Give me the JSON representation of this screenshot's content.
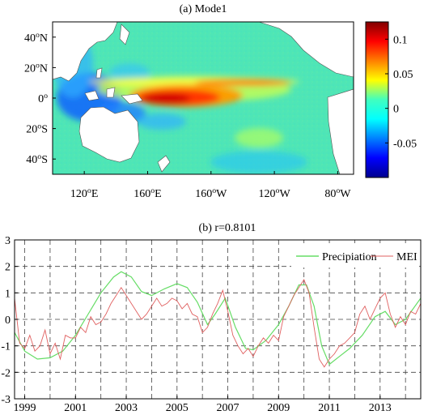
{
  "map_panel": {
    "title": "(a) Mode1",
    "lat_labels": [
      {
        "deg": "40",
        "hemi": "N",
        "lat": 40
      },
      {
        "deg": "20",
        "hemi": "N",
        "lat": 20
      },
      {
        "deg": "0",
        "hemi": "",
        "lat": 0
      },
      {
        "deg": "20",
        "hemi": "S",
        "lat": -20
      },
      {
        "deg": "40",
        "hemi": "S",
        "lat": -40
      }
    ],
    "lon_labels": [
      {
        "deg": "120",
        "hemi": "E",
        "lon": 120
      },
      {
        "deg": "160",
        "hemi": "E",
        "lon": 160
      },
      {
        "deg": "160",
        "hemi": "W",
        "lon": 200
      },
      {
        "deg": "120",
        "hemi": "W",
        "lon": 240
      },
      {
        "deg": "80",
        "hemi": "W",
        "lon": 280
      }
    ],
    "lon_range": [
      100,
      290
    ],
    "lat_range": [
      -50,
      50
    ],
    "colorbar": {
      "range": [
        -0.1,
        0.125
      ],
      "ticks": [
        {
          "value": 0.1,
          "label": "0.1"
        },
        {
          "value": 0.05,
          "label": "0.05"
        },
        {
          "value": 0,
          "label": "0"
        },
        {
          "value": -0.05,
          "label": "-0.05"
        }
      ],
      "colormap": "jet"
    }
  },
  "chart_data": {
    "type": "line",
    "title": "(b) r=0.8101",
    "xlim": [
      1998.6,
      2014.6
    ],
    "ylim": [
      -3,
      3
    ],
    "x_tick_labels": [
      "1999",
      "2001",
      "2003",
      "2005",
      "2007",
      "2009",
      "2011",
      "2013"
    ],
    "y_tick_labels": [
      "3",
      "2",
      "1",
      "0",
      "-1",
      "-2",
      "-3"
    ],
    "grid": true,
    "legend_position": "top-right",
    "series": [
      {
        "name": "Precipiation",
        "color": "#66dd66",
        "x": [
          1998.6,
          1999.0,
          1999.5,
          2000.0,
          2000.5,
          2001.0,
          2001.5,
          2002.0,
          2002.5,
          2002.8,
          2003.2,
          2003.6,
          2004.0,
          2004.5,
          2005.0,
          2005.4,
          2005.8,
          2006.2,
          2006.5,
          2006.9,
          2007.3,
          2007.7,
          2008.0,
          2008.5,
          2009.0,
          2009.4,
          2009.8,
          2010.1,
          2010.4,
          2010.7,
          2011.0,
          2011.4,
          2011.8,
          2012.3,
          2012.8,
          2013.2,
          2013.6,
          2014.0,
          2014.6
        ],
        "y": [
          -0.5,
          -1.2,
          -1.5,
          -1.45,
          -1.2,
          -0.6,
          0.2,
          1.0,
          1.6,
          1.8,
          1.6,
          1.05,
          0.9,
          1.15,
          1.35,
          1.2,
          0.65,
          -0.2,
          0.2,
          0.8,
          -0.3,
          -1.1,
          -1.15,
          -0.8,
          -0.2,
          0.5,
          1.3,
          1.3,
          0.5,
          -1.0,
          -1.7,
          -1.4,
          -1.1,
          -0.6,
          0.1,
          0.3,
          -0.2,
          0.0,
          0.8
        ]
      },
      {
        "name": "MEI",
        "color": "#e06060",
        "x": [
          1998.6,
          1998.8,
          1999.0,
          1999.2,
          1999.4,
          1999.6,
          1999.8,
          2000.0,
          2000.2,
          2000.4,
          2000.6,
          2000.8,
          2001.0,
          2001.2,
          2001.4,
          2001.6,
          2001.8,
          2002.0,
          2002.2,
          2002.4,
          2002.6,
          2002.8,
          2003.0,
          2003.2,
          2003.4,
          2003.6,
          2003.8,
          2004.0,
          2004.2,
          2004.4,
          2004.6,
          2004.8,
          2005.0,
          2005.2,
          2005.4,
          2005.6,
          2005.8,
          2006.0,
          2006.2,
          2006.4,
          2006.6,
          2006.8,
          2007.0,
          2007.2,
          2007.4,
          2007.6,
          2007.8,
          2008.0,
          2008.2,
          2008.4,
          2008.6,
          2008.8,
          2009.0,
          2009.2,
          2009.4,
          2009.6,
          2009.8,
          2010.0,
          2010.2,
          2010.4,
          2010.6,
          2010.8,
          2011.0,
          2011.2,
          2011.4,
          2011.6,
          2011.8,
          2012.0,
          2012.2,
          2012.4,
          2012.6,
          2012.8,
          2013.0,
          2013.2,
          2013.4,
          2013.6,
          2013.8,
          2014.0,
          2014.2,
          2014.4,
          2014.6
        ],
        "y": [
          0.8,
          -0.9,
          -1.1,
          -0.6,
          -1.2,
          -1.0,
          -0.4,
          -1.3,
          -0.9,
          -1.5,
          -0.6,
          -0.7,
          -0.7,
          -0.3,
          -0.5,
          0.1,
          -0.2,
          -0.1,
          0.2,
          0.6,
          0.9,
          1.2,
          0.9,
          0.6,
          0.3,
          0.0,
          0.2,
          0.5,
          0.8,
          0.5,
          0.6,
          0.8,
          0.7,
          0.4,
          0.6,
          0.2,
          0.1,
          -0.5,
          -0.3,
          0.2,
          0.6,
          1.1,
          0.3,
          -0.6,
          -1.0,
          -1.3,
          -1.1,
          -1.4,
          -1.0,
          -0.7,
          -0.9,
          -0.6,
          -0.8,
          0.1,
          0.5,
          0.9,
          1.2,
          1.5,
          1.0,
          -0.3,
          -1.5,
          -1.8,
          -1.5,
          -1.3,
          -1.0,
          -0.9,
          -0.7,
          -0.5,
          0.2,
          0.5,
          0.0,
          0.4,
          0.8,
          1.0,
          0.2,
          -0.3,
          0.1,
          -0.2,
          0.3,
          0.2,
          0.6
        ]
      }
    ]
  }
}
